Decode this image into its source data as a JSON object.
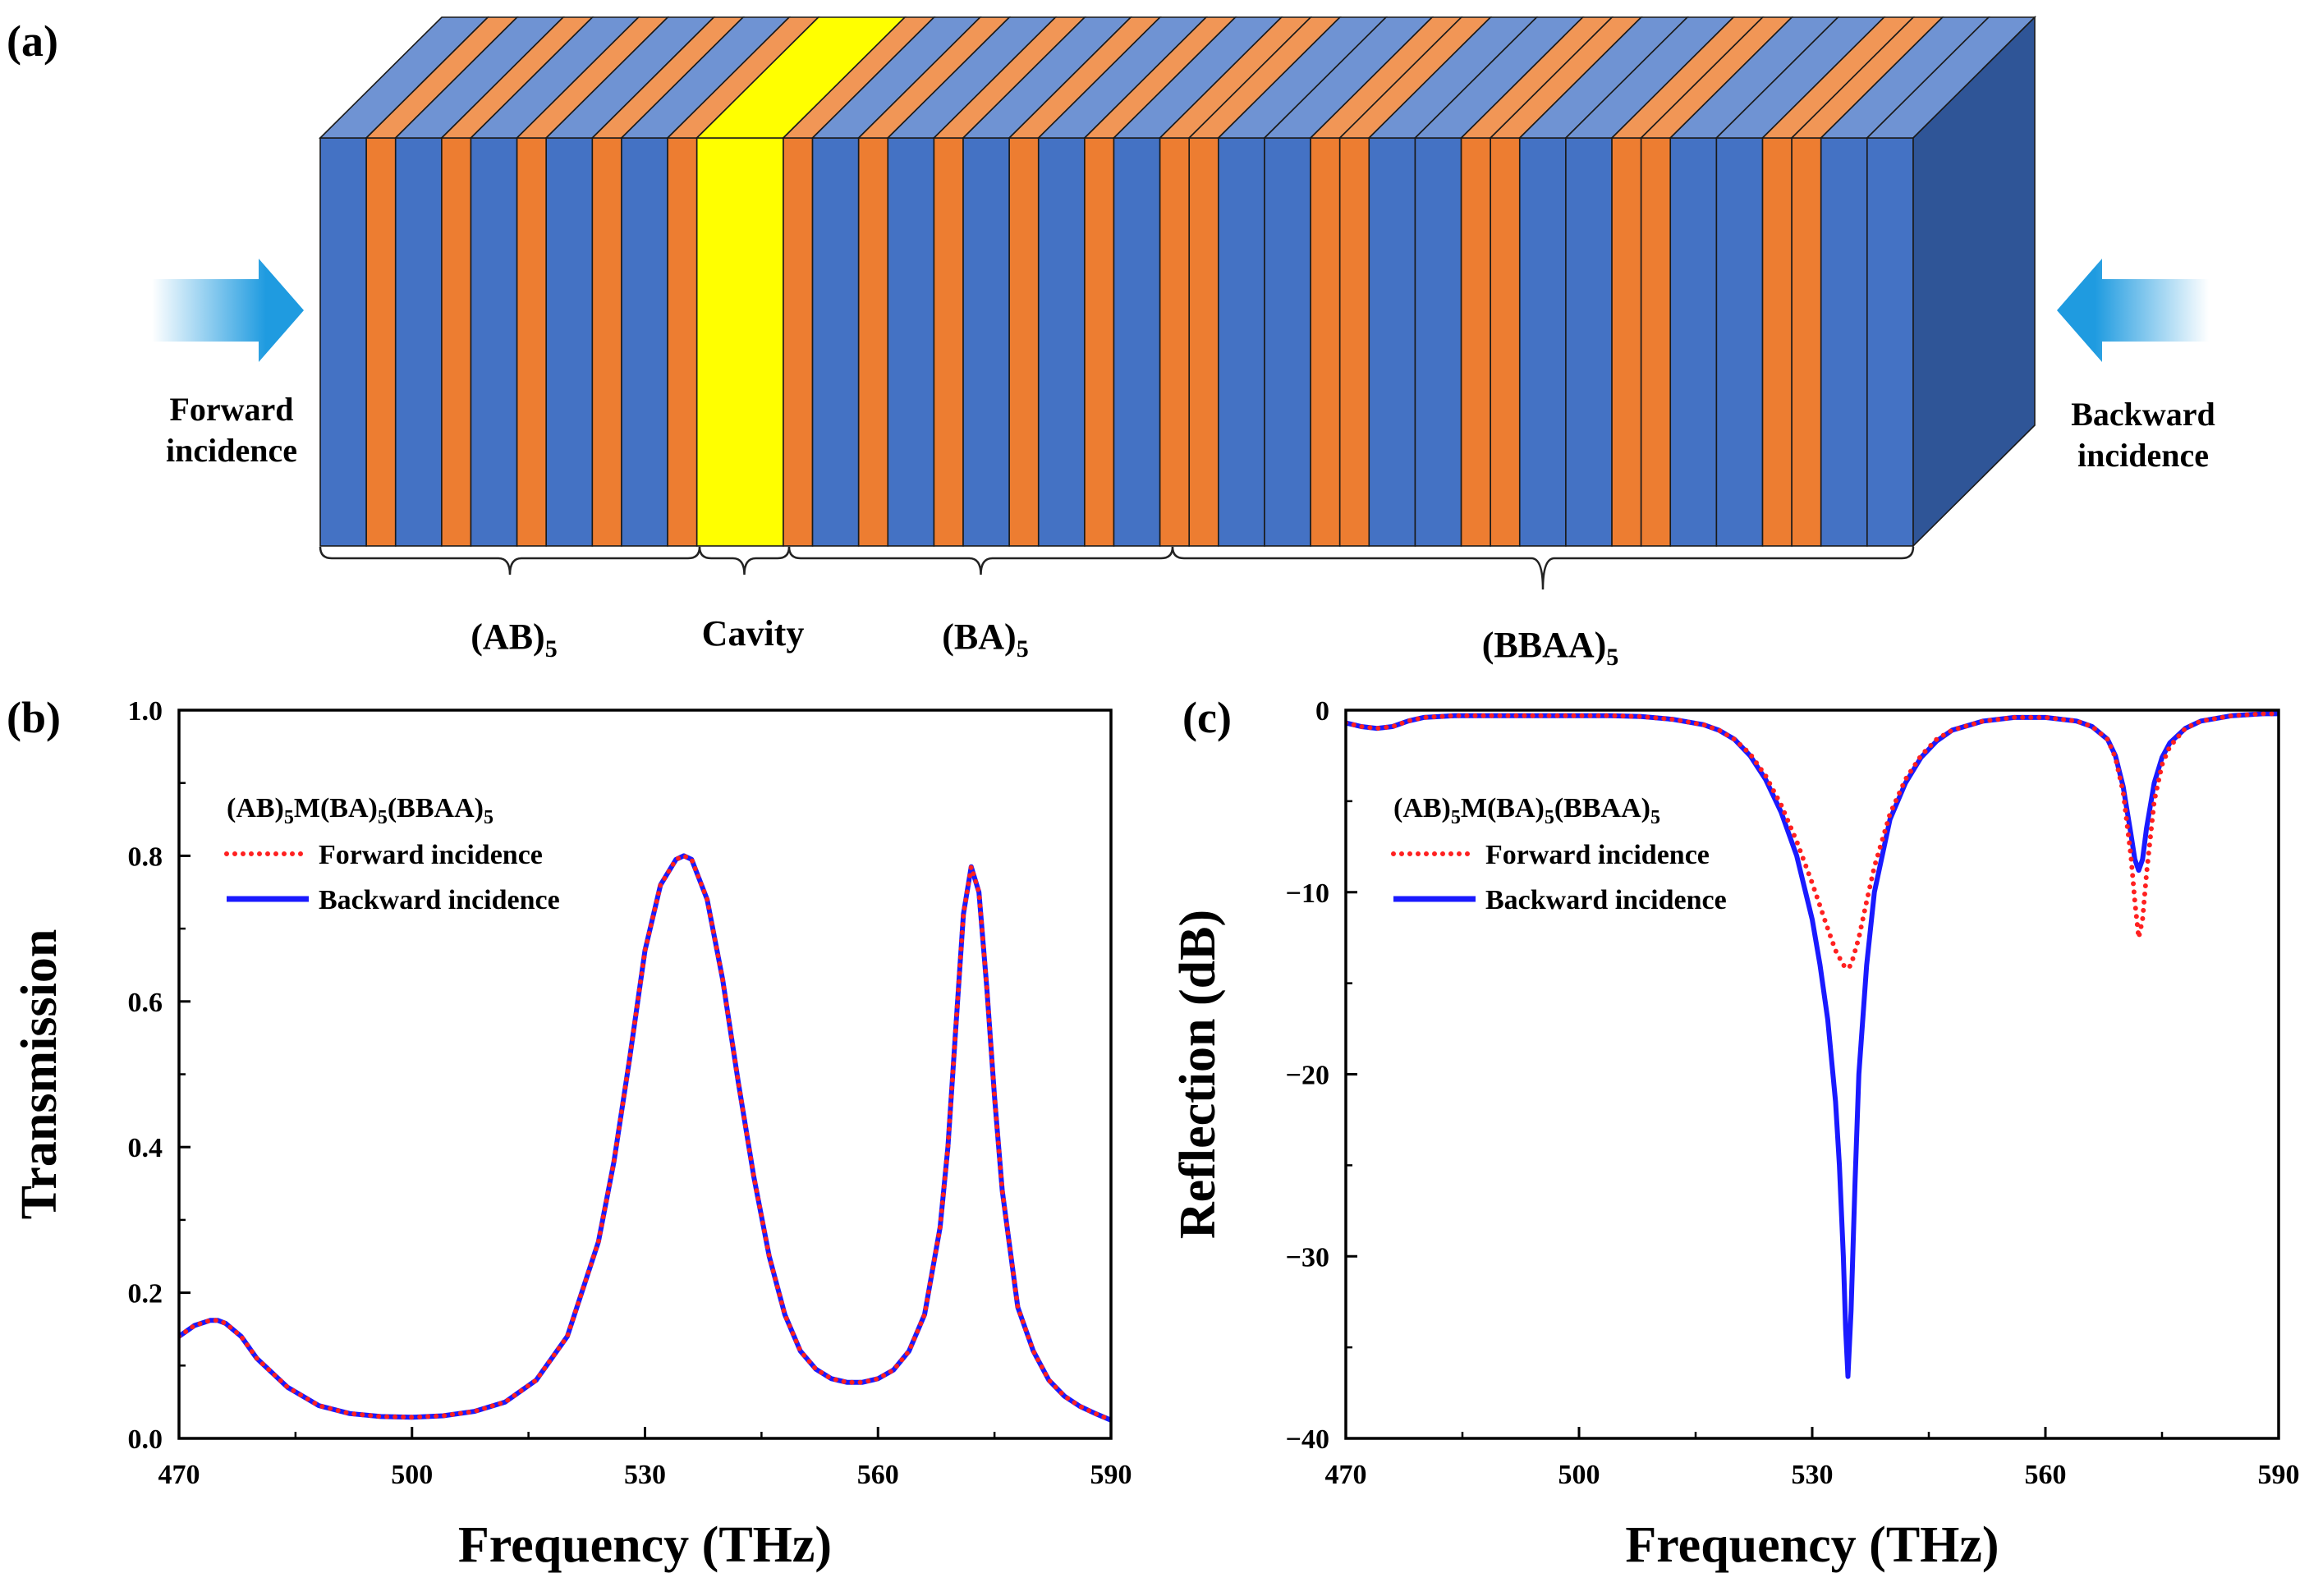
{
  "panel_a": {
    "label": "(a)",
    "forward": {
      "line1": "Forward",
      "line2": "incidence"
    },
    "backward": {
      "line1": "Backward",
      "line2": "incidence"
    },
    "layers": [
      "A",
      "B",
      "A",
      "B",
      "A",
      "B",
      "A",
      "B",
      "A",
      "B",
      "M",
      "B",
      "A",
      "B",
      "A",
      "B",
      "A",
      "B",
      "A",
      "B",
      "A",
      "B",
      "B",
      "A",
      "A",
      "B",
      "B",
      "A",
      "A",
      "B",
      "B",
      "A",
      "A",
      "B",
      "B",
      "A",
      "A",
      "B",
      "B",
      "A",
      "A"
    ],
    "groups": [
      {
        "base": "(AB)",
        "sub": "5"
      },
      {
        "base": "Cavity",
        "sub": ""
      },
      {
        "base": "(BA)",
        "sub": "5"
      },
      {
        "base": "(BBAA)",
        "sub": "5"
      }
    ],
    "colors": {
      "A": "#4472c4",
      "B": "#ed7d31",
      "M": "#ffff00",
      "top_A": "#6f93d3",
      "top_B": "#f19656",
      "side": "#2f5597",
      "arrow": "#1f9be0"
    }
  },
  "chart_data": [
    {
      "type": "line",
      "panel": "(b)",
      "title": "",
      "xlabel": "Frequency (THz)",
      "ylabel": "Transmission",
      "xlim": [
        470,
        590
      ],
      "ylim": [
        0,
        1.0
      ],
      "xticks": [
        "470",
        "500",
        "530",
        "560",
        "590"
      ],
      "yticks": [
        "0.0",
        "0.2",
        "0.4",
        "0.6",
        "0.8",
        "1.0"
      ],
      "legend_title": {
        "p1": "(AB)",
        "s1": "5",
        "p2": "M(BA)",
        "s2": "5",
        "p3": "(BBAA)",
        "s3": "5"
      },
      "legend_position": "top-left",
      "series": [
        {
          "name": "Forward incidence",
          "color": "#ff2020",
          "style": "dotted",
          "x": [
            470,
            472,
            474,
            475,
            476,
            478,
            480,
            484,
            488,
            492,
            496,
            500,
            504,
            508,
            512,
            516,
            520,
            524,
            526,
            528,
            530,
            532,
            534,
            535,
            536,
            538,
            540,
            542,
            544,
            546,
            548,
            550,
            552,
            554,
            556,
            558,
            560,
            562,
            564,
            566,
            568,
            569,
            570,
            571,
            572,
            573,
            574,
            575,
            576,
            578,
            580,
            582,
            584,
            586,
            588,
            590
          ],
          "y": [
            0.14,
            0.155,
            0.162,
            0.162,
            0.158,
            0.14,
            0.11,
            0.07,
            0.045,
            0.034,
            0.03,
            0.029,
            0.031,
            0.037,
            0.05,
            0.08,
            0.14,
            0.27,
            0.38,
            0.52,
            0.67,
            0.76,
            0.795,
            0.8,
            0.795,
            0.74,
            0.63,
            0.49,
            0.36,
            0.25,
            0.17,
            0.12,
            0.095,
            0.082,
            0.077,
            0.077,
            0.082,
            0.094,
            0.12,
            0.17,
            0.29,
            0.4,
            0.56,
            0.72,
            0.785,
            0.75,
            0.62,
            0.47,
            0.34,
            0.18,
            0.12,
            0.08,
            0.058,
            0.044,
            0.034,
            0.025
          ]
        },
        {
          "name": "Backward incidence",
          "color": "#1a1aff",
          "style": "solid",
          "x": [
            470,
            472,
            474,
            475,
            476,
            478,
            480,
            484,
            488,
            492,
            496,
            500,
            504,
            508,
            512,
            516,
            520,
            524,
            526,
            528,
            530,
            532,
            534,
            535,
            536,
            538,
            540,
            542,
            544,
            546,
            548,
            550,
            552,
            554,
            556,
            558,
            560,
            562,
            564,
            566,
            568,
            569,
            570,
            571,
            572,
            573,
            574,
            575,
            576,
            578,
            580,
            582,
            584,
            586,
            588,
            590
          ],
          "y": [
            0.14,
            0.155,
            0.162,
            0.162,
            0.158,
            0.14,
            0.11,
            0.07,
            0.045,
            0.034,
            0.03,
            0.029,
            0.031,
            0.037,
            0.05,
            0.08,
            0.14,
            0.27,
            0.38,
            0.52,
            0.67,
            0.76,
            0.795,
            0.8,
            0.795,
            0.74,
            0.63,
            0.49,
            0.36,
            0.25,
            0.17,
            0.12,
            0.095,
            0.082,
            0.077,
            0.077,
            0.082,
            0.094,
            0.12,
            0.17,
            0.29,
            0.4,
            0.56,
            0.72,
            0.785,
            0.75,
            0.62,
            0.47,
            0.34,
            0.18,
            0.12,
            0.08,
            0.058,
            0.044,
            0.034,
            0.025
          ]
        }
      ]
    },
    {
      "type": "line",
      "panel": "(c)",
      "title": "",
      "xlabel": "Frequency (THz)",
      "ylabel": "Reflection (dB)",
      "xlim": [
        470,
        590
      ],
      "ylim": [
        -40,
        0
      ],
      "xticks": [
        "470",
        "500",
        "530",
        "560",
        "590"
      ],
      "yticks": [
        "-40",
        "-30",
        "-20",
        "-10",
        "0"
      ],
      "legend_title": {
        "p1": "(AB)",
        "s1": "5",
        "p2": "M(BA)",
        "s2": "5",
        "p3": "(BBAA)",
        "s3": "5"
      },
      "legend_position": "top-left",
      "series": [
        {
          "name": "Forward incidence",
          "color": "#ff2020",
          "style": "dotted",
          "x": [
            470,
            472,
            474,
            476,
            478,
            480,
            484,
            488,
            492,
            496,
            500,
            504,
            508,
            512,
            516,
            518,
            520,
            522,
            524,
            526,
            528,
            530,
            532,
            533,
            534,
            534.5,
            535,
            536,
            537,
            538,
            540,
            542,
            544,
            546,
            548,
            552,
            556,
            560,
            564,
            566,
            568,
            569,
            570,
            571,
            571.5,
            572,
            572.5,
            573,
            574,
            575,
            576,
            578,
            580,
            584,
            588,
            590
          ],
          "y": [
            -0.7,
            -0.9,
            -1.0,
            -0.9,
            -0.6,
            -0.4,
            -0.3,
            -0.3,
            -0.3,
            -0.3,
            -0.3,
            -0.3,
            -0.35,
            -0.5,
            -0.8,
            -1.1,
            -1.6,
            -2.4,
            -3.6,
            -5.2,
            -7.2,
            -9.5,
            -12.0,
            -13.2,
            -14.0,
            -14.2,
            -14.0,
            -12.5,
            -10.5,
            -8.6,
            -5.7,
            -3.8,
            -2.5,
            -1.6,
            -1.1,
            -0.6,
            -0.4,
            -0.4,
            -0.6,
            -0.9,
            -1.6,
            -2.6,
            -4.5,
            -8.0,
            -10.5,
            -12.5,
            -11.5,
            -9.0,
            -5.0,
            -3.0,
            -2.0,
            -1.0,
            -0.6,
            -0.3,
            -0.2,
            -0.2
          ]
        },
        {
          "name": "Backward incidence",
          "color": "#1a1aff",
          "style": "solid",
          "x": [
            470,
            472,
            474,
            476,
            478,
            480,
            484,
            488,
            492,
            496,
            500,
            504,
            508,
            512,
            516,
            518,
            520,
            522,
            524,
            526,
            528,
            530,
            531,
            532,
            533,
            533.5,
            534,
            534.3,
            534.6,
            535,
            535.5,
            536,
            537,
            538,
            540,
            542,
            544,
            546,
            548,
            552,
            556,
            560,
            564,
            566,
            568,
            569,
            570,
            571,
            571.5,
            572,
            572.5,
            573,
            574,
            575,
            576,
            578,
            580,
            584,
            588,
            590
          ],
          "y": [
            -0.7,
            -0.9,
            -1.0,
            -0.9,
            -0.6,
            -0.4,
            -0.3,
            -0.3,
            -0.3,
            -0.3,
            -0.3,
            -0.3,
            -0.35,
            -0.5,
            -0.8,
            -1.1,
            -1.6,
            -2.5,
            -3.8,
            -5.6,
            -8.0,
            -11.5,
            -14.0,
            -17.0,
            -21.5,
            -25.0,
            -30.0,
            -34.0,
            -36.6,
            -33.0,
            -26.0,
            -20.0,
            -14.0,
            -10.0,
            -6.0,
            -4.0,
            -2.6,
            -1.7,
            -1.1,
            -0.6,
            -0.4,
            -0.4,
            -0.6,
            -0.9,
            -1.6,
            -2.5,
            -4.2,
            -6.8,
            -8.2,
            -8.8,
            -8.2,
            -6.5,
            -4.0,
            -2.6,
            -1.8,
            -1.0,
            -0.6,
            -0.3,
            -0.2,
            -0.2
          ]
        }
      ]
    }
  ]
}
